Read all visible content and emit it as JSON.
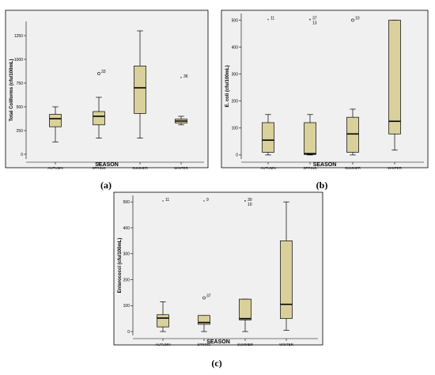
{
  "chart_data": [
    {
      "panel_label": "(a)",
      "type": "box",
      "xlabel": "SEASON",
      "ylabel": "Total Coliforms (cfu/100mL)",
      "ylim": [
        -50,
        1400
      ],
      "yticks": [
        0,
        250,
        500,
        750,
        1000,
        1250
      ],
      "categories": [
        "AUTUMN",
        "SPRING",
        "SUMMER",
        "WINTER"
      ],
      "boxes": [
        {
          "min": 130,
          "q1": 290,
          "median": 375,
          "q3": 420,
          "max": 500,
          "outliers": []
        },
        {
          "min": 170,
          "q1": 310,
          "median": 400,
          "q3": 450,
          "max": 600,
          "outliers": [
            {
              "value": 850,
              "label": "33",
              "marker": "circle"
            }
          ]
        },
        {
          "min": 170,
          "q1": 430,
          "median": 700,
          "q3": 930,
          "max": 1300,
          "outliers": []
        },
        {
          "min": 310,
          "q1": 330,
          "median": 350,
          "q3": 370,
          "max": 400,
          "outliers": [
            {
              "value": 800,
              "label": "36",
              "marker": "star"
            }
          ]
        }
      ]
    },
    {
      "panel_label": "(b)",
      "type": "box",
      "xlabel": "SEASON",
      "ylabel": "E. coli (cfu/100mL)",
      "ylim": [
        -15,
        525
      ],
      "yticks": [
        0,
        100,
        200,
        300,
        400,
        500
      ],
      "categories": [
        "AUTUMN",
        "SPRING",
        "SUMMER",
        "WINTER"
      ],
      "boxes": [
        {
          "min": 0,
          "q1": 10,
          "median": 55,
          "q3": 120,
          "max": 150,
          "outliers": [
            {
              "value": 500,
              "label": "11",
              "marker": "star"
            }
          ]
        },
        {
          "min": 0,
          "q1": 2,
          "median": 5,
          "q3": 120,
          "max": 150,
          "outliers": [
            {
              "value": 500,
              "label": "37",
              "marker": "star"
            },
            {
              "value": 500,
              "label": "13",
              "marker": "star"
            }
          ]
        },
        {
          "min": 0,
          "q1": 10,
          "median": 78,
          "q3": 140,
          "max": 170,
          "outliers": [
            {
              "value": 500,
              "label": "10",
              "marker": "circle"
            }
          ]
        },
        {
          "min": 18,
          "q1": 78,
          "median": 125,
          "q3": 500,
          "max": 500,
          "outliers": []
        }
      ]
    },
    {
      "panel_label": "(c)",
      "type": "box",
      "xlabel": "SEASON",
      "ylabel": "Enterococci (cfu/100mL)",
      "ylim": [
        -15,
        525
      ],
      "yticks": [
        0,
        100,
        200,
        300,
        400,
        500
      ],
      "categories": [
        "AUTUMN",
        "SPRING",
        "SUMMER",
        "WINTER"
      ],
      "boxes": [
        {
          "min": 0,
          "q1": 18,
          "median": 52,
          "q3": 65,
          "max": 115,
          "outliers": [
            {
              "value": 500,
              "label": "11",
              "marker": "star"
            }
          ]
        },
        {
          "min": 0,
          "q1": 28,
          "median": 35,
          "q3": 62,
          "max": 62,
          "outliers": [
            {
              "value": 500,
              "label": "9",
              "marker": "star"
            },
            {
              "value": 130,
              "label": "37",
              "marker": "circle"
            }
          ]
        },
        {
          "min": 0,
          "q1": 45,
          "median": 50,
          "q3": 125,
          "max": 125,
          "outliers": [
            {
              "value": 500,
              "label": "30",
              "marker": "star"
            },
            {
              "value": 500,
              "label": "10",
              "marker": "star"
            }
          ]
        },
        {
          "min": 5,
          "q1": 50,
          "median": 105,
          "q3": 350,
          "max": 500,
          "outliers": []
        }
      ]
    }
  ],
  "style": {
    "box_fill": "#d9d09b",
    "plot_bg": "#f0f0f0"
  }
}
